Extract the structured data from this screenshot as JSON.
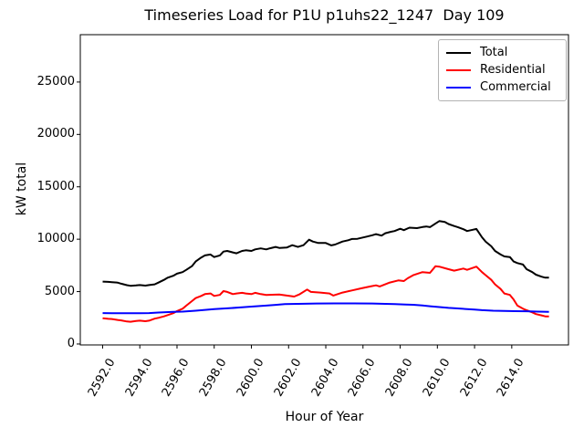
{
  "chart_data": {
    "type": "line",
    "title": "Timeseries Load for P1U p1uhs22_1247  Day 109",
    "xlabel": "Hour of Year",
    "ylabel": "kW total",
    "xlim": [
      2590.8,
      2617.05
    ],
    "ylim": [
      -90,
      29520
    ],
    "grid": false,
    "legend_position": "upper right",
    "x_ticks": [
      {
        "value": 2592,
        "label": "2592.0"
      },
      {
        "value": 2594,
        "label": "2594.0"
      },
      {
        "value": 2596,
        "label": "2596.0"
      },
      {
        "value": 2598,
        "label": "2598.0"
      },
      {
        "value": 2600,
        "label": "2600.0"
      },
      {
        "value": 2602,
        "label": "2602.0"
      },
      {
        "value": 2604,
        "label": "2604.0"
      },
      {
        "value": 2606,
        "label": "2606.0"
      },
      {
        "value": 2608,
        "label": "2608.0"
      },
      {
        "value": 2610,
        "label": "2610.0"
      },
      {
        "value": 2612,
        "label": "2612.0"
      },
      {
        "value": 2614,
        "label": "2614.0"
      }
    ],
    "y_ticks": [
      {
        "value": 0,
        "label": "0"
      },
      {
        "value": 5000,
        "label": "5000"
      },
      {
        "value": 10000,
        "label": "10000"
      },
      {
        "value": 15000,
        "label": "15000"
      },
      {
        "value": 20000,
        "label": "20000"
      },
      {
        "value": 25000,
        "label": "25000"
      }
    ],
    "series": [
      {
        "name": "Total",
        "color": "#000000",
        "points": [
          [
            2592.0,
            5950
          ],
          [
            2592.3,
            5930
          ],
          [
            2592.5,
            5900
          ],
          [
            2592.8,
            5860
          ],
          [
            2593.0,
            5750
          ],
          [
            2593.3,
            5610
          ],
          [
            2593.5,
            5550
          ],
          [
            2593.8,
            5590
          ],
          [
            2594.0,
            5620
          ],
          [
            2594.3,
            5570
          ],
          [
            2594.5,
            5620
          ],
          [
            2594.8,
            5690
          ],
          [
            2595.0,
            5860
          ],
          [
            2595.3,
            6120
          ],
          [
            2595.5,
            6330
          ],
          [
            2595.8,
            6510
          ],
          [
            2596.0,
            6710
          ],
          [
            2596.3,
            6860
          ],
          [
            2596.5,
            7080
          ],
          [
            2596.8,
            7430
          ],
          [
            2597.0,
            7870
          ],
          [
            2597.3,
            8250
          ],
          [
            2597.5,
            8450
          ],
          [
            2597.8,
            8540
          ],
          [
            2598.0,
            8300
          ],
          [
            2598.3,
            8450
          ],
          [
            2598.5,
            8820
          ],
          [
            2598.7,
            8880
          ],
          [
            2599.0,
            8740
          ],
          [
            2599.2,
            8650
          ],
          [
            2599.5,
            8880
          ],
          [
            2599.7,
            8940
          ],
          [
            2600.0,
            8880
          ],
          [
            2600.2,
            9030
          ],
          [
            2600.5,
            9120
          ],
          [
            2600.8,
            9030
          ],
          [
            2601.0,
            9130
          ],
          [
            2601.3,
            9260
          ],
          [
            2601.5,
            9170
          ],
          [
            2601.9,
            9200
          ],
          [
            2602.2,
            9430
          ],
          [
            2602.5,
            9260
          ],
          [
            2602.8,
            9430
          ],
          [
            2603.1,
            9950
          ],
          [
            2603.3,
            9780
          ],
          [
            2603.6,
            9640
          ],
          [
            2604.0,
            9640
          ],
          [
            2604.3,
            9410
          ],
          [
            2604.5,
            9490
          ],
          [
            2604.9,
            9780
          ],
          [
            2605.2,
            9900
          ],
          [
            2605.4,
            10020
          ],
          [
            2605.7,
            10040
          ],
          [
            2606.2,
            10250
          ],
          [
            2606.5,
            10380
          ],
          [
            2606.7,
            10480
          ],
          [
            2607.0,
            10340
          ],
          [
            2607.2,
            10570
          ],
          [
            2607.5,
            10710
          ],
          [
            2607.7,
            10780
          ],
          [
            2608.0,
            11000
          ],
          [
            2608.2,
            10870
          ],
          [
            2608.5,
            11100
          ],
          [
            2608.9,
            11060
          ],
          [
            2609.2,
            11160
          ],
          [
            2609.4,
            11210
          ],
          [
            2609.6,
            11150
          ],
          [
            2609.9,
            11500
          ],
          [
            2610.1,
            11730
          ],
          [
            2610.4,
            11650
          ],
          [
            2610.6,
            11450
          ],
          [
            2610.9,
            11260
          ],
          [
            2611.1,
            11150
          ],
          [
            2611.4,
            10950
          ],
          [
            2611.6,
            10780
          ],
          [
            2611.9,
            10900
          ],
          [
            2612.1,
            10980
          ],
          [
            2612.4,
            10190
          ],
          [
            2612.6,
            9760
          ],
          [
            2612.9,
            9320
          ],
          [
            2613.1,
            8880
          ],
          [
            2613.4,
            8540
          ],
          [
            2613.6,
            8360
          ],
          [
            2613.9,
            8300
          ],
          [
            2614.1,
            7870
          ],
          [
            2614.3,
            7720
          ],
          [
            2614.6,
            7580
          ],
          [
            2614.8,
            7140
          ],
          [
            2615.1,
            6860
          ],
          [
            2615.3,
            6620
          ],
          [
            2615.6,
            6420
          ],
          [
            2615.8,
            6330
          ],
          [
            2616.0,
            6330
          ]
        ]
      },
      {
        "name": "Residential",
        "color": "#ff0000",
        "points": [
          [
            2592.0,
            2450
          ],
          [
            2592.3,
            2400
          ],
          [
            2592.5,
            2380
          ],
          [
            2592.8,
            2300
          ],
          [
            2593.0,
            2250
          ],
          [
            2593.3,
            2150
          ],
          [
            2593.5,
            2120
          ],
          [
            2593.8,
            2200
          ],
          [
            2594.0,
            2230
          ],
          [
            2594.3,
            2170
          ],
          [
            2594.5,
            2230
          ],
          [
            2594.8,
            2420
          ],
          [
            2595.0,
            2500
          ],
          [
            2595.3,
            2640
          ],
          [
            2595.5,
            2760
          ],
          [
            2595.8,
            2940
          ],
          [
            2596.0,
            3140
          ],
          [
            2596.3,
            3370
          ],
          [
            2596.5,
            3660
          ],
          [
            2596.8,
            4090
          ],
          [
            2597.0,
            4380
          ],
          [
            2597.3,
            4590
          ],
          [
            2597.5,
            4760
          ],
          [
            2597.8,
            4820
          ],
          [
            2598.0,
            4590
          ],
          [
            2598.3,
            4680
          ],
          [
            2598.5,
            5050
          ],
          [
            2598.7,
            4970
          ],
          [
            2599.0,
            4760
          ],
          [
            2599.2,
            4820
          ],
          [
            2599.5,
            4880
          ],
          [
            2599.7,
            4820
          ],
          [
            2600.0,
            4760
          ],
          [
            2600.2,
            4880
          ],
          [
            2600.5,
            4760
          ],
          [
            2600.8,
            4680
          ],
          [
            2601.1,
            4700
          ],
          [
            2601.5,
            4730
          ],
          [
            2601.9,
            4620
          ],
          [
            2602.3,
            4530
          ],
          [
            2602.6,
            4750
          ],
          [
            2603.0,
            5200
          ],
          [
            2603.2,
            4970
          ],
          [
            2603.7,
            4910
          ],
          [
            2604.2,
            4820
          ],
          [
            2604.4,
            4620
          ],
          [
            2604.9,
            4910
          ],
          [
            2605.4,
            5110
          ],
          [
            2605.9,
            5310
          ],
          [
            2606.4,
            5490
          ],
          [
            2606.7,
            5600
          ],
          [
            2606.9,
            5490
          ],
          [
            2607.4,
            5840
          ],
          [
            2607.9,
            6070
          ],
          [
            2608.2,
            6010
          ],
          [
            2608.4,
            6270
          ],
          [
            2608.7,
            6560
          ],
          [
            2609.2,
            6860
          ],
          [
            2609.6,
            6790
          ],
          [
            2609.9,
            7430
          ],
          [
            2610.1,
            7380
          ],
          [
            2610.6,
            7140
          ],
          [
            2610.9,
            7000
          ],
          [
            2611.4,
            7200
          ],
          [
            2611.6,
            7080
          ],
          [
            2612.1,
            7380
          ],
          [
            2612.4,
            6860
          ],
          [
            2612.6,
            6560
          ],
          [
            2612.9,
            6120
          ],
          [
            2613.1,
            5690
          ],
          [
            2613.4,
            5250
          ],
          [
            2613.6,
            4820
          ],
          [
            2613.9,
            4680
          ],
          [
            2614.1,
            4240
          ],
          [
            2614.3,
            3660
          ],
          [
            2614.6,
            3370
          ],
          [
            2614.8,
            3220
          ],
          [
            2615.1,
            3020
          ],
          [
            2615.3,
            2850
          ],
          [
            2615.6,
            2730
          ],
          [
            2615.8,
            2640
          ],
          [
            2616.0,
            2640
          ]
        ]
      },
      {
        "name": "Commercial",
        "color": "#0000ff",
        "points": [
          [
            2592.0,
            2950
          ],
          [
            2592.5,
            2940
          ],
          [
            2593.0,
            2940
          ],
          [
            2593.5,
            2930
          ],
          [
            2594.0,
            2940
          ],
          [
            2594.5,
            2950
          ],
          [
            2595.0,
            3000
          ],
          [
            2595.8,
            3070
          ],
          [
            2596.3,
            3090
          ],
          [
            2597.0,
            3180
          ],
          [
            2597.5,
            3250
          ],
          [
            2598.0,
            3320
          ],
          [
            2598.7,
            3400
          ],
          [
            2599.5,
            3500
          ],
          [
            2600.0,
            3570
          ],
          [
            2600.8,
            3660
          ],
          [
            2601.3,
            3730
          ],
          [
            2601.8,
            3800
          ],
          [
            2602.5,
            3830
          ],
          [
            2603.5,
            3860
          ],
          [
            2604.5,
            3870
          ],
          [
            2605.5,
            3870
          ],
          [
            2606.5,
            3860
          ],
          [
            2607.2,
            3830
          ],
          [
            2607.7,
            3800
          ],
          [
            2608.3,
            3760
          ],
          [
            2608.7,
            3740
          ],
          [
            2609.2,
            3670
          ],
          [
            2609.6,
            3600
          ],
          [
            2610.1,
            3520
          ],
          [
            2610.6,
            3450
          ],
          [
            2611.0,
            3400
          ],
          [
            2611.5,
            3340
          ],
          [
            2612.0,
            3280
          ],
          [
            2612.4,
            3230
          ],
          [
            2613.0,
            3180
          ],
          [
            2613.6,
            3150
          ],
          [
            2614.2,
            3130
          ],
          [
            2614.8,
            3120
          ],
          [
            2615.4,
            3090
          ],
          [
            2616.0,
            3070
          ]
        ]
      }
    ]
  }
}
